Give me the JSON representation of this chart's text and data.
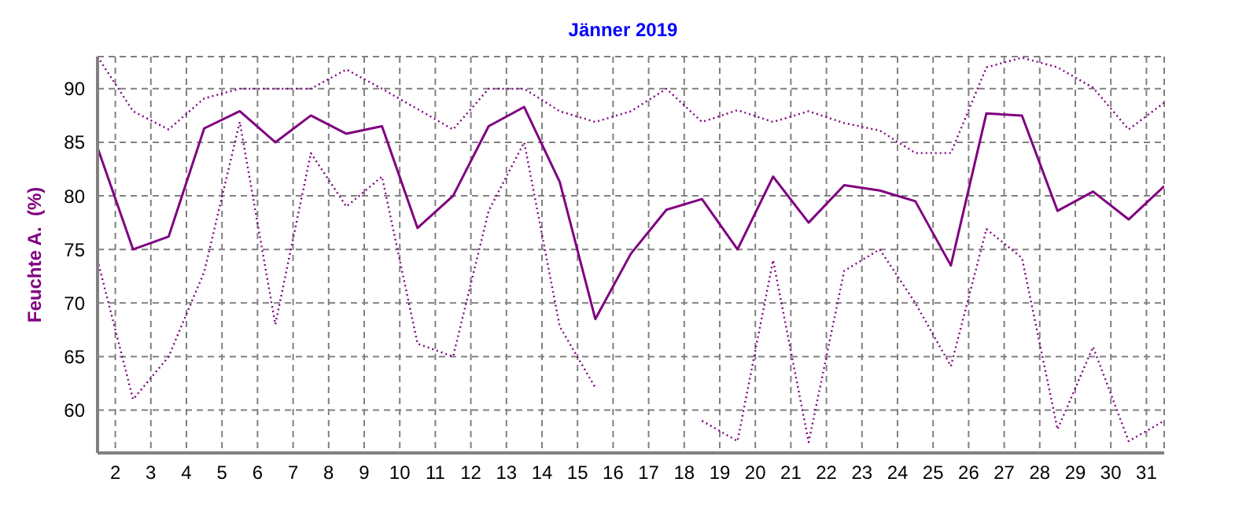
{
  "chart_data": {
    "type": "line",
    "title": "Jänner 2019",
    "ylabel": "Feuchte A.  (%)",
    "x": [
      1.5,
      2.5,
      3.5,
      4.5,
      5.5,
      6.5,
      7.5,
      8.5,
      9.5,
      10.5,
      11.5,
      12.5,
      13.5,
      14.5,
      15.5,
      16.5,
      17.5,
      18.5,
      19.5,
      20.5,
      21.5,
      22.5,
      23.5,
      24.5,
      25.5,
      26.5,
      27.5,
      28.5,
      29.5,
      30.5,
      31.5
    ],
    "series": [
      {
        "color": "#800080",
        "line_style": "dotted",
        "values": [
          93,
          87.9,
          86.2,
          89.1,
          90,
          90,
          90,
          91.8,
          90,
          88.1,
          86.2,
          90,
          90,
          87.9,
          86.9,
          87.9,
          90,
          86.9,
          88,
          86.9,
          87.9,
          86.8,
          86.1,
          84,
          84,
          92,
          92.9,
          92,
          90.1,
          86.2,
          88.7
        ]
      },
      {
        "color": "#800080",
        "line_style": "solid",
        "values": [
          84.5,
          75,
          76.2,
          86.3,
          87.9,
          85,
          87.5,
          85.8,
          86.5,
          77,
          80,
          86.5,
          88.3,
          81.3,
          68.5,
          74.6,
          78.7,
          79.7,
          75,
          81.8,
          77.5,
          81,
          80.5,
          79.5,
          73.5,
          87.7,
          87.5,
          78.6,
          80.4,
          77.8,
          80.9
        ]
      },
      {
        "color": "#800080",
        "line_style": "dotted",
        "values": [
          74,
          61,
          65,
          72.9,
          86.9,
          68,
          84,
          79,
          81.8,
          66.2,
          65,
          78.6,
          85,
          67.8,
          62.1,
          null,
          null,
          59,
          57.1,
          74,
          57,
          73,
          75,
          70,
          64.1,
          76.9,
          74.2,
          58.2,
          65.9,
          57.1,
          59
        ]
      }
    ],
    "xlim": [
      1.5,
      31.5
    ],
    "xticks": [
      2,
      3,
      4,
      5,
      6,
      7,
      8,
      9,
      10,
      11,
      12,
      13,
      14,
      15,
      16,
      17,
      18,
      19,
      20,
      21,
      22,
      23,
      24,
      25,
      26,
      27,
      28,
      29,
      30,
      31
    ],
    "ylim": [
      56,
      93
    ],
    "yticks": [
      60,
      65,
      70,
      75,
      80,
      85,
      90
    ],
    "grid": true,
    "marker": "none"
  }
}
